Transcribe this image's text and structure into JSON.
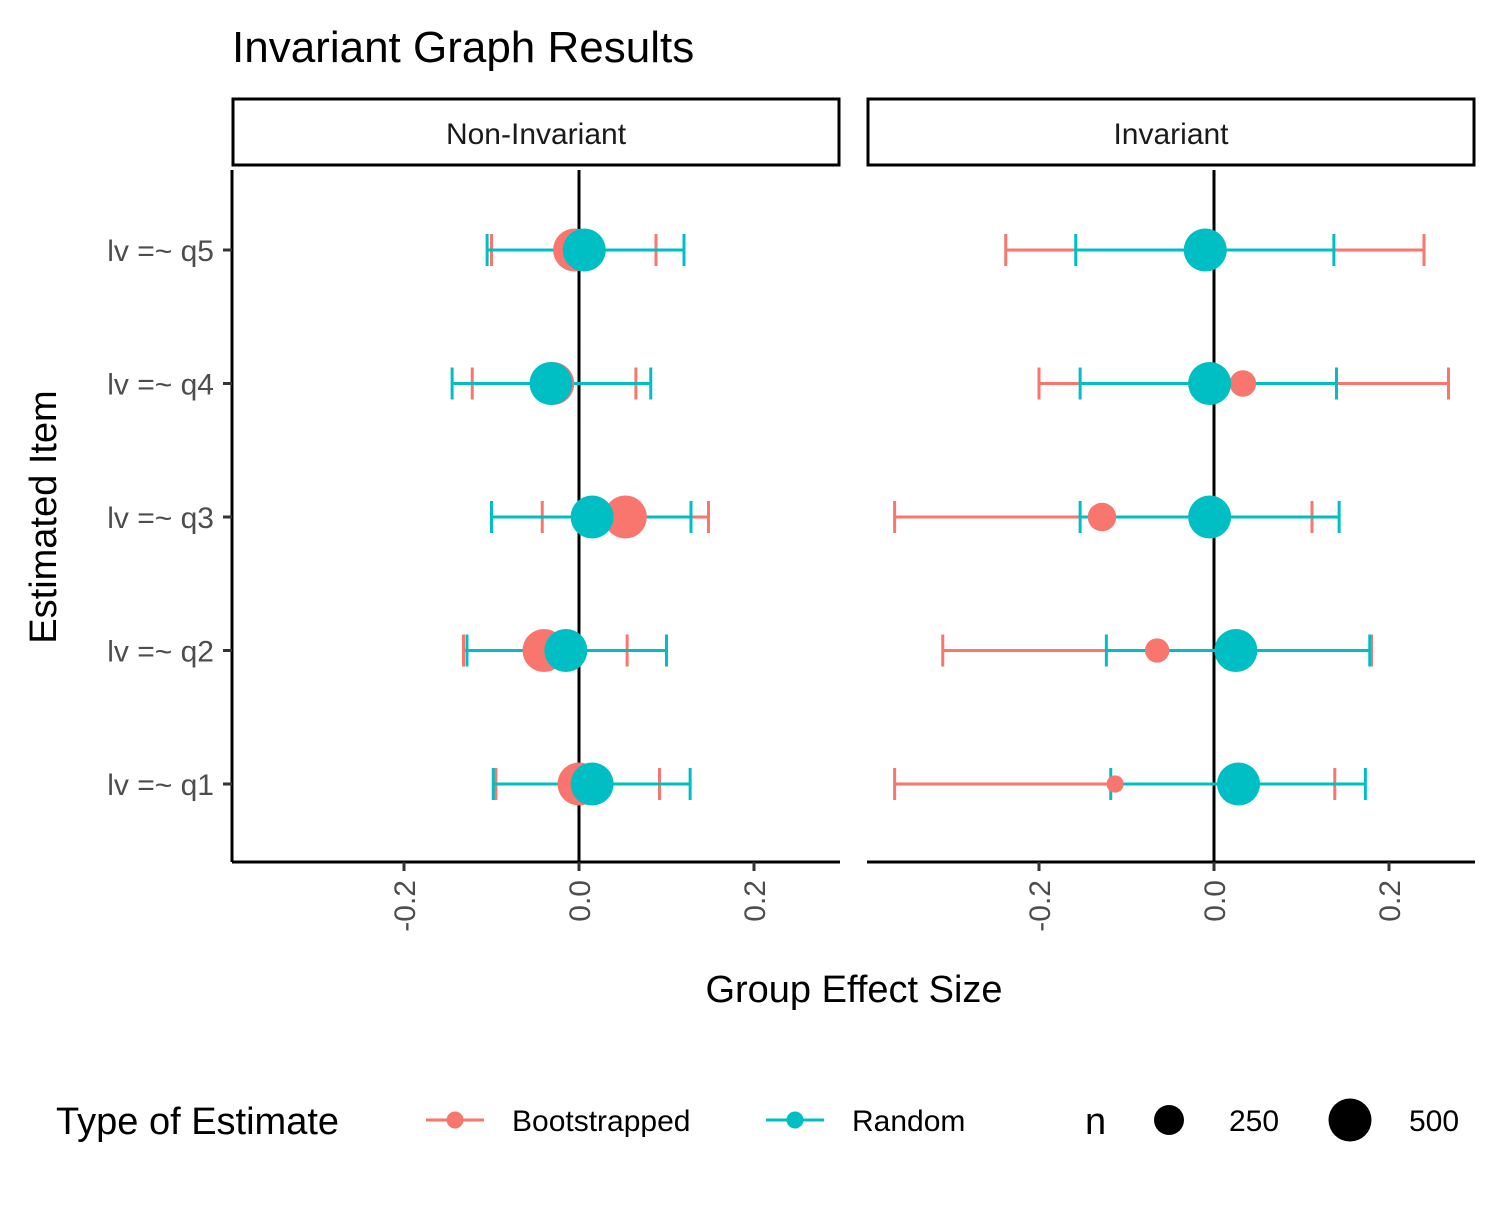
{
  "chart_data": {
    "type": "scatter",
    "title": "Invariant Graph Results",
    "xlabel": "Group Effect Size",
    "ylabel": "Estimated Item",
    "xlim": [
      -0.4,
      0.3
    ],
    "x_ticks": [
      "-0.2",
      "0.0",
      "0.2"
    ],
    "categories": [
      "lv =~ q1",
      "lv =~ q2",
      "lv =~ q3",
      "lv =~ q4",
      "lv =~ q5"
    ],
    "facets": [
      "Non-Invariant",
      "Invariant"
    ],
    "reference_line_x": 0,
    "grid": false,
    "colors": {
      "Bootstrapped": "#F8766D",
      "Random": "#00BFC4"
    },
    "series": [
      {
        "name": "Bootstrapped",
        "facet": "Non-Invariant",
        "points": [
          {
            "item": "lv =~ q1",
            "estimate": 0.0,
            "lower": -0.095,
            "upper": 0.092,
            "n": 500
          },
          {
            "item": "lv =~ q2",
            "estimate": -0.04,
            "lower": -0.132,
            "upper": 0.055,
            "n": 500
          },
          {
            "item": "lv =~ q3",
            "estimate": 0.053,
            "lower": -0.042,
            "upper": 0.148,
            "n": 500
          },
          {
            "item": "lv =~ q4",
            "estimate": -0.03,
            "lower": -0.122,
            "upper": 0.065,
            "n": 500
          },
          {
            "item": "lv =~ q5",
            "estimate": -0.005,
            "lower": -0.1,
            "upper": 0.088,
            "n": 500
          }
        ]
      },
      {
        "name": "Random",
        "facet": "Non-Invariant",
        "points": [
          {
            "item": "lv =~ q1",
            "estimate": 0.015,
            "lower": -0.098,
            "upper": 0.127,
            "n": 500
          },
          {
            "item": "lv =~ q2",
            "estimate": -0.015,
            "lower": -0.128,
            "upper": 0.1,
            "n": 500
          },
          {
            "item": "lv =~ q3",
            "estimate": 0.015,
            "lower": -0.1,
            "upper": 0.128,
            "n": 500
          },
          {
            "item": "lv =~ q4",
            "estimate": -0.032,
            "lower": -0.145,
            "upper": 0.082,
            "n": 500
          },
          {
            "item": "lv =~ q5",
            "estimate": 0.006,
            "lower": -0.105,
            "upper": 0.12,
            "n": 500
          }
        ]
      },
      {
        "name": "Bootstrapped",
        "facet": "Invariant",
        "points": [
          {
            "item": "lv =~ q1",
            "estimate": -0.113,
            "lower": -0.365,
            "upper": 0.138,
            "n": 80
          },
          {
            "item": "lv =~ q2",
            "estimate": -0.065,
            "lower": -0.31,
            "upper": 0.18,
            "n": 160
          },
          {
            "item": "lv =~ q3",
            "estimate": -0.128,
            "lower": -0.365,
            "upper": 0.112,
            "n": 220
          },
          {
            "item": "lv =~ q4",
            "estimate": 0.033,
            "lower": -0.2,
            "upper": 0.268,
            "n": 190
          },
          {
            "item": "lv =~ q5",
            "estimate": -0.005,
            "lower": -0.238,
            "upper": 0.24,
            "n": 60
          }
        ]
      },
      {
        "name": "Random",
        "facet": "Invariant",
        "points": [
          {
            "item": "lv =~ q1",
            "estimate": 0.028,
            "lower": -0.118,
            "upper": 0.173,
            "n": 500
          },
          {
            "item": "lv =~ q2",
            "estimate": 0.025,
            "lower": -0.123,
            "upper": 0.178,
            "n": 500
          },
          {
            "item": "lv =~ q3",
            "estimate": -0.005,
            "lower": -0.153,
            "upper": 0.143,
            "n": 500
          },
          {
            "item": "lv =~ q4",
            "estimate": -0.005,
            "lower": -0.153,
            "upper": 0.14,
            "n": 500
          },
          {
            "item": "lv =~ q5",
            "estimate": -0.01,
            "lower": -0.158,
            "upper": 0.137,
            "n": 500
          }
        ]
      }
    ],
    "legend": {
      "placement": "bottom",
      "color_title": "Type of Estimate",
      "color_entries": [
        "Bootstrapped",
        "Random"
      ],
      "size_title": "n",
      "size_entries": [
        250,
        500
      ]
    }
  }
}
